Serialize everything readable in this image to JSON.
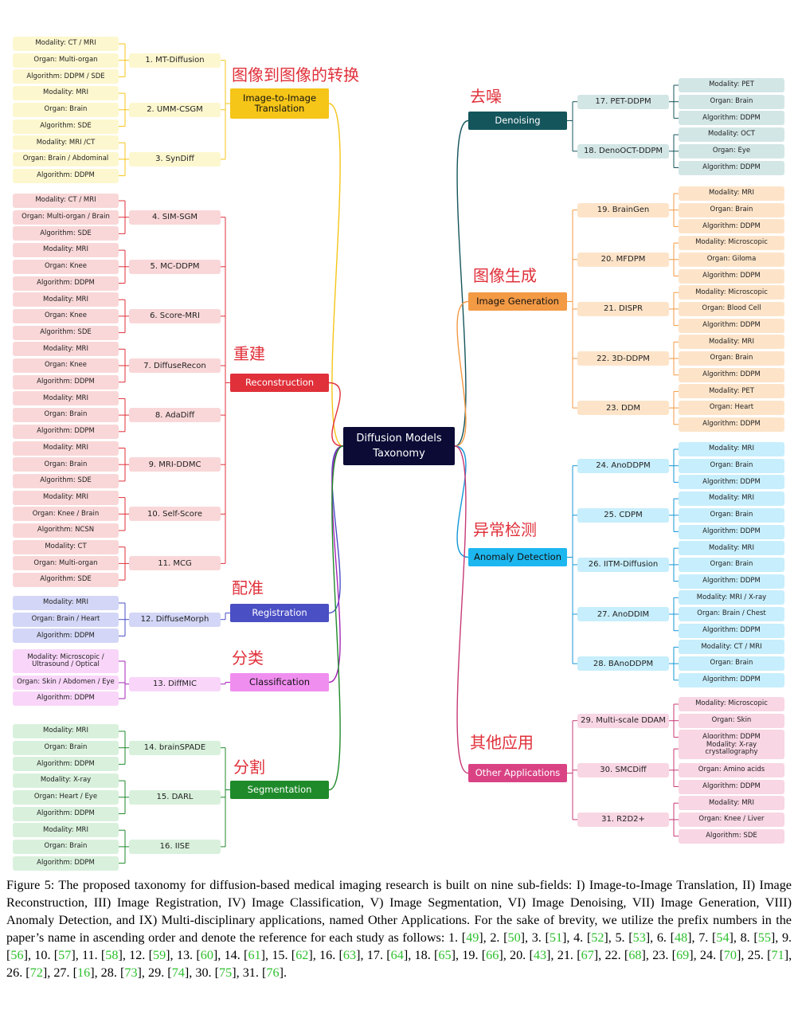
{
  "root": {
    "line1": "Diffusion Models",
    "line2": "Taxonomy"
  },
  "categories": [
    {
      "id": "i2i",
      "zh": "图像到图像的转换",
      "l1": "Image-to-Image",
      "l2": "Translation",
      "color": "#f5c518",
      "bg": "#f5c518",
      "fg": "#111",
      "light": "#fdf7cf",
      "side": "left",
      "papers": [
        {
          "name": "1. MT-Diffusion",
          "leaves": [
            "Modality: CT / MRI",
            "Organ: Multi-organ",
            "Algorithm: DDPM / SDE"
          ]
        },
        {
          "name": "2. UMM-CSGM",
          "leaves": [
            "Modality: MRI",
            "Organ: Brain",
            "Algorithm: SDE"
          ]
        },
        {
          "name": "3. SynDiff",
          "leaves": [
            "Modality: MRI /CT",
            "Organ: Brain / Abdominal",
            "Algorithm: DDPM"
          ]
        }
      ]
    },
    {
      "id": "rec",
      "zh": "重建",
      "l1": "Reconstruction",
      "l2": "",
      "color": "#e0303a",
      "bg": "#e0303a",
      "fg": "#fff",
      "light": "#f9d7d8",
      "side": "left",
      "papers": [
        {
          "name": "4. SIM-SGM",
          "leaves": [
            "Modality: CT / MRI",
            "Organ: Multi-organ / Brain",
            "Algorithm: SDE"
          ]
        },
        {
          "name": "5. MC-DDPM",
          "leaves": [
            "Modality: MRI",
            "Organ: Knee",
            "Algorithm: DDPM"
          ]
        },
        {
          "name": "6. Score-MRI",
          "leaves": [
            "Modality: MRI",
            "Organ: Knee",
            "Algorithm: SDE"
          ]
        },
        {
          "name": "7. DiffuseRecon",
          "leaves": [
            "Modality: MRI",
            "Organ: Knee",
            "Algorithm: DDPM"
          ]
        },
        {
          "name": "8. AdaDiff",
          "leaves": [
            "Modality: MRI",
            "Organ: Brain",
            "Algorithm: DDPM"
          ]
        },
        {
          "name": "9. MRI-DDMC",
          "leaves": [
            "Modality: MRI",
            "Organ: Brain",
            "Algorithm: SDE"
          ]
        },
        {
          "name": "10. Self-Score",
          "leaves": [
            "Modality: MRI",
            "Organ: Knee / Brain",
            "Algorithm: NCSN"
          ]
        },
        {
          "name": "11. MCG",
          "leaves": [
            "Modality: CT",
            "Organ: Multi-organ",
            "Algorithm: SDE"
          ]
        }
      ]
    },
    {
      "id": "reg",
      "zh": "配准",
      "l1": "Registration",
      "l2": "",
      "color": "#4a4fc4",
      "bg": "#4a4fc4",
      "fg": "#fff",
      "light": "#d3d6f6",
      "side": "left",
      "papers": [
        {
          "name": "12. DiffuseMorph",
          "leaves": [
            "Modality: MRI",
            "Organ: Brain / Heart",
            "Algorithm: DDPM"
          ]
        }
      ]
    },
    {
      "id": "cls",
      "zh": "分类",
      "l1": "Classification",
      "l2": "",
      "color": "#a526b8",
      "bg": "#f08ef0",
      "fg": "#111",
      "light": "#f9d6f9",
      "side": "left",
      "papers": [
        {
          "name": "13. DiffMIC",
          "leaves": [
            "Modality: Microscopic / Ultrasound / Optical",
            "Organ: Skin / Abdomen / Eye",
            "Algorithm: DDPM"
          ]
        }
      ]
    },
    {
      "id": "seg",
      "zh": "分割",
      "l1": "Segmentation",
      "l2": "",
      "color": "#1f8a2a",
      "bg": "#1f8a2a",
      "fg": "#fff",
      "light": "#d9f1dc",
      "side": "left",
      "papers": [
        {
          "name": "14. brainSPADE",
          "leaves": [
            "Modality: MRI",
            "Organ: Brain",
            "Algorithm: DDPM"
          ]
        },
        {
          "name": "15. DARL",
          "leaves": [
            "Modality: X-ray",
            "Organ: Heart / Eye",
            "Algorithm: DDPM"
          ]
        },
        {
          "name": "16. IISE",
          "leaves": [
            "Modality: MRI",
            "Organ: Brain",
            "Algorithm: DDPM"
          ]
        }
      ]
    },
    {
      "id": "den",
      "zh": "去噪",
      "l1": "Denoising",
      "l2": "",
      "color": "#14555c",
      "bg": "#14555c",
      "fg": "#fff",
      "light": "#d3e6e6",
      "side": "right",
      "papers": [
        {
          "name": "17. PET-DDPM",
          "leaves": [
            "Modality: PET",
            "Organ: Brain",
            "Algorithm: DDPM"
          ]
        },
        {
          "name": "18. DenoOCT-DDPM",
          "leaves": [
            "Modality: OCT",
            "Organ: Eye",
            "Algorithm: DDPM"
          ]
        }
      ]
    },
    {
      "id": "gen",
      "zh": "图像生成",
      "l1": "Image Generation",
      "l2": "",
      "color": "#f39a45",
      "bg": "#f39a45",
      "fg": "#111",
      "light": "#fde4c9",
      "side": "right",
      "papers": [
        {
          "name": "19. BrainGen",
          "leaves": [
            "Modality: MRI",
            "Organ: Brain",
            "Algorithm: DDPM"
          ]
        },
        {
          "name": "20. MFDPM",
          "leaves": [
            "Modality: Microscopic",
            "Organ: Giloma",
            "Algorithm: DDPM"
          ]
        },
        {
          "name": "21. DISPR",
          "leaves": [
            "Modality: Microscopic",
            "Organ: Blood Cell",
            "Algorithm: DDPM"
          ]
        },
        {
          "name": "22. 3D-DDPM",
          "leaves": [
            "Modality: MRI",
            "Organ: Brain",
            "Algorithm: DDPM"
          ]
        },
        {
          "name": "23. DDM",
          "leaves": [
            "Modality: PET",
            "Organ: Heart",
            "Algorithm: DDPM"
          ]
        }
      ]
    },
    {
      "id": "ano",
      "zh": "异常检测",
      "l1": "Anomaly Detection",
      "l2": "",
      "color": "#1497d6",
      "bg": "#1db7f0",
      "fg": "#111",
      "light": "#c7eefc",
      "side": "right",
      "papers": [
        {
          "name": "24. AnoDDPM",
          "leaves": [
            "Modality: MRI",
            "Organ: Brain",
            "Algorithm: DDPM"
          ]
        },
        {
          "name": "25. CDPM",
          "leaves": [
            "Modality: MRI",
            "Organ: Brain",
            "Algorithm: DDPM"
          ]
        },
        {
          "name": "26. IITM-Diffusion",
          "leaves": [
            "Modality: MRI",
            "Organ: Brain",
            "Algorithm: DDPM"
          ]
        },
        {
          "name": "27. AnoDDIM",
          "leaves": [
            "Modality: MRI / X-ray",
            "Organ: Brain / Chest",
            "Algorithm: DDPM"
          ]
        },
        {
          "name": "28. BAnoDDPM",
          "leaves": [
            "Modality: CT / MRI",
            "Organ: Brain",
            "Algorithm: DDPM"
          ]
        }
      ]
    },
    {
      "id": "oth",
      "zh": "其他应用",
      "l1": "Other Applications",
      "l2": "",
      "color": "#c73a76",
      "bg": "#d94384",
      "fg": "#fff",
      "light": "#f8d6e3",
      "side": "right",
      "papers": [
        {
          "name": "29. Multi-scale DDAM",
          "leaves": [
            "Modality: Microscopic",
            "Organ: Skin",
            "Algorithm: DDPM"
          ]
        },
        {
          "name": "30. SMCDiff",
          "leaves": [
            "Modality: X-ray crystallography",
            "Organ: Amino acids",
            "Algorithm: DDPM"
          ]
        },
        {
          "name": "31. R2D2+",
          "leaves": [
            "Modality: MRI",
            "Organ: Knee / Liver",
            "Algorithm: SDE"
          ]
        }
      ]
    }
  ],
  "caption": {
    "text": "Figure 5: The proposed taxonomy for diffusion-based medical imaging research is built on nine sub-fields: I) Image-to-Image Translation, II) Image Reconstruction, III) Image Registration, IV) Image Classification, V) Image Segmentation, VI) Image Denoising, VII) Image Generation, VIII) Anomaly Detection, and IX) Multi-disciplinary applications, named Other Applications. For the sake of brevity, we utilize the prefix numbers in the paper’s name in ascending order and denote the reference for each study as follows:",
    "refs": [
      "49",
      "50",
      "51",
      "52",
      "53",
      "48",
      "54",
      "55",
      "56",
      "57",
      "58",
      "59",
      "60",
      "61",
      "62",
      "63",
      "64",
      "65",
      "66",
      "43",
      "67",
      "68",
      "69",
      "70",
      "71",
      "72",
      "16",
      "73",
      "74",
      "75",
      "76"
    ]
  }
}
